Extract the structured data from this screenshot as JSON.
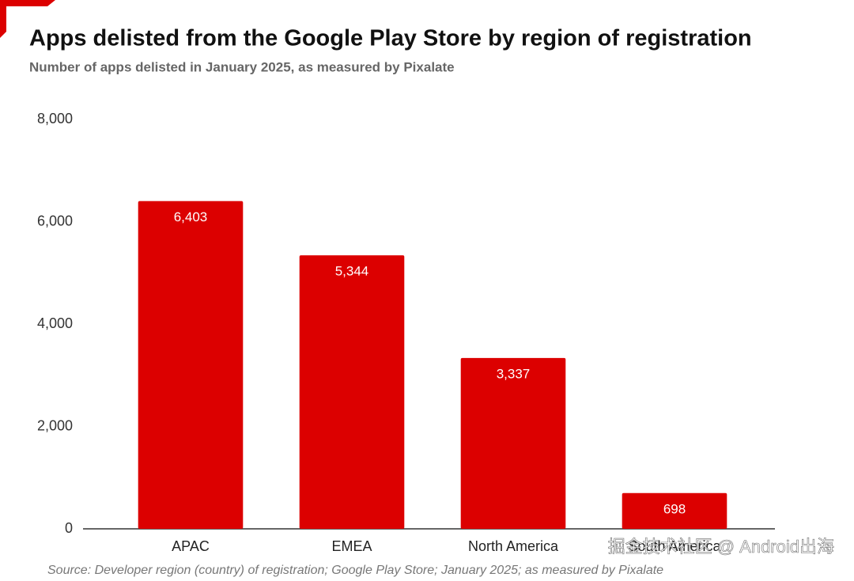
{
  "chart_data": {
    "type": "bar",
    "title": "Apps delisted from the Google Play Store by region of registration",
    "subtitle": "Number of apps delisted in January 2025, as measured by Pixalate",
    "source": "Source: Developer region (country) of registration; Google Play Store; January 2025; as measured by Pixalate",
    "watermark": "掘金技术社区 @ Android出海",
    "categories": [
      "APAC",
      "EMEA",
      "North America",
      "South America"
    ],
    "values": [
      6403,
      5344,
      3337,
      698
    ],
    "value_labels": [
      "6,403",
      "5,344",
      "3,337",
      "698"
    ],
    "color": "#dc0000",
    "ylim": [
      0,
      8000
    ],
    "yticks": [
      {
        "value": 0,
        "label": "0"
      },
      {
        "value": 2000,
        "label": "2,000"
      },
      {
        "value": 4000,
        "label": "4,000"
      },
      {
        "value": 6000,
        "label": "6,000"
      },
      {
        "value": 8000,
        "label": "8,000"
      }
    ],
    "grid": false
  }
}
